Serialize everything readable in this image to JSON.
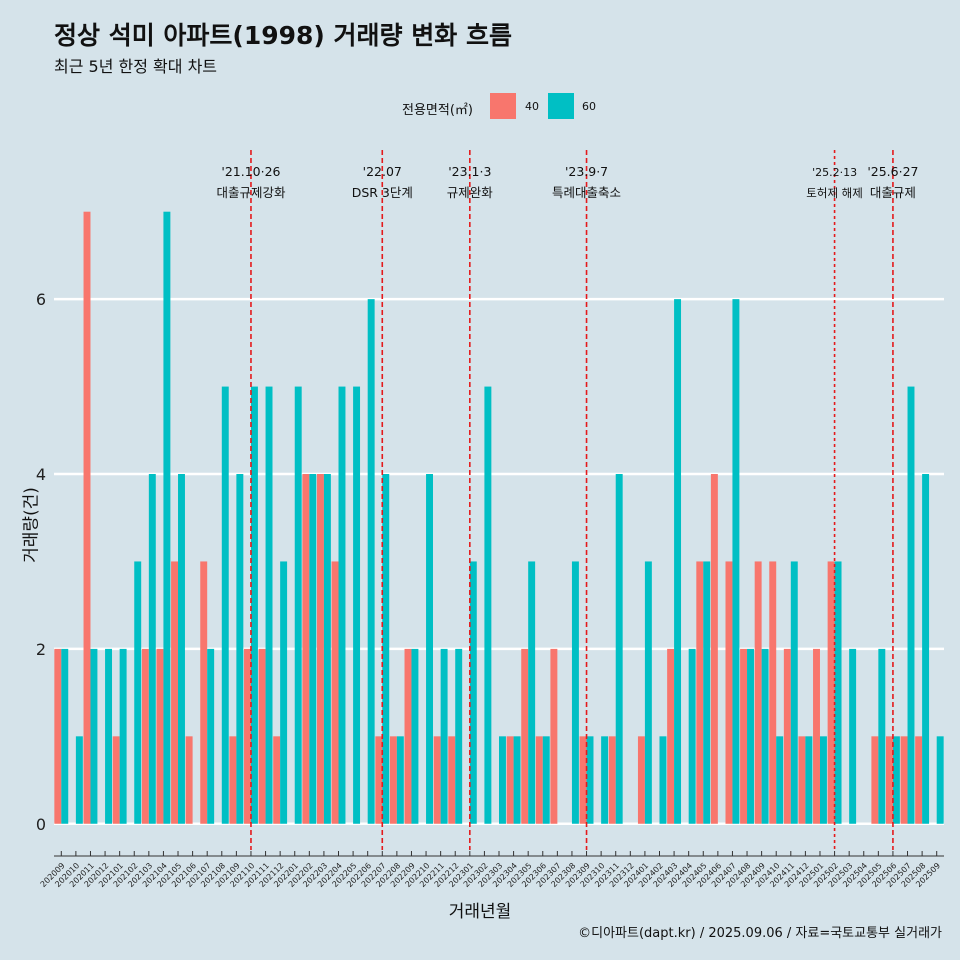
{
  "chart_data": {
    "type": "bar",
    "title": "정상 석미 아파트(1998) 거래량 변화 흐름",
    "subtitle": "최근 5년 한정 확대 차트",
    "xlabel": "거래년월",
    "ylabel": "거래량(건)",
    "ylim": [
      -0.3,
      7.9
    ],
    "yticks": [
      0,
      2,
      4,
      6
    ],
    "legend_title": "전용면적(㎡)",
    "legend_position": "top",
    "grid": true,
    "caption": "©디아파트(dapt.kr) / 2025.09.06 / 자료=국토교통부 실거래가",
    "categories": [
      "202009",
      "202010",
      "202011",
      "202012",
      "202101",
      "202102",
      "202103",
      "202104",
      "202105",
      "202106",
      "202107",
      "202108",
      "202109",
      "202110",
      "202111",
      "202112",
      "202201",
      "202202",
      "202203",
      "202204",
      "202205",
      "202206",
      "202207",
      "202208",
      "202209",
      "202210",
      "202211",
      "202212",
      "202301",
      "202302",
      "202303",
      "202304",
      "202305",
      "202306",
      "202307",
      "202308",
      "202309",
      "202310",
      "202311",
      "202312",
      "202401",
      "202402",
      "202403",
      "202404",
      "202405",
      "202406",
      "202407",
      "202408",
      "202409",
      "202410",
      "202411",
      "202412",
      "202501",
      "202502",
      "202503",
      "202504",
      "202505",
      "202506",
      "202507",
      "202508",
      "202509"
    ],
    "series": [
      {
        "name": "40",
        "color": "#f8766d",
        "values": [
          2,
          0,
          7,
          0,
          1,
          0,
          2,
          2,
          3,
          1,
          3,
          0,
          1,
          2,
          2,
          1,
          0,
          4,
          4,
          3,
          0,
          0,
          1,
          1,
          2,
          0,
          1,
          1,
          0,
          0,
          0,
          1,
          2,
          1,
          2,
          0,
          1,
          0,
          1,
          0,
          1,
          0,
          2,
          0,
          3,
          4,
          3,
          2,
          3,
          3,
          2,
          1,
          2,
          3,
          0,
          0,
          1,
          1,
          1,
          1,
          0
        ]
      },
      {
        "name": "60",
        "color": "#00bfc4",
        "values": [
          2,
          1,
          2,
          2,
          2,
          3,
          4,
          7,
          4,
          0,
          2,
          5,
          4,
          5,
          5,
          3,
          5,
          4,
          4,
          5,
          5,
          6,
          4,
          1,
          2,
          4,
          2,
          2,
          3,
          5,
          1,
          1,
          3,
          1,
          0,
          3,
          1,
          1,
          4,
          0,
          3,
          1,
          6,
          2,
          3,
          0,
          6,
          2,
          2,
          1,
          3,
          1,
          1,
          3,
          2,
          0,
          2,
          1,
          5,
          4,
          1
        ]
      }
    ],
    "annotations": [
      {
        "category": "202110",
        "line1": "'21.10·26",
        "line2": "대출규제강화",
        "style": "dashed"
      },
      {
        "category": "202207",
        "line1": "'22.07",
        "line2": "DSR 3단계",
        "style": "dashed"
      },
      {
        "category": "202301",
        "line1": "'23.1·3",
        "line2": "규제완화",
        "style": "dashed"
      },
      {
        "category": "202309",
        "line1": "'23.9·7",
        "line2": "특례대출축소",
        "style": "dashed"
      },
      {
        "category": "202502",
        "line1": "'25.2·13",
        "line2": "토허제 해제",
        "style": "dotted"
      },
      {
        "category": "202506",
        "line1": "'25.6·27",
        "line2": "대출규제",
        "style": "dashed"
      }
    ]
  }
}
